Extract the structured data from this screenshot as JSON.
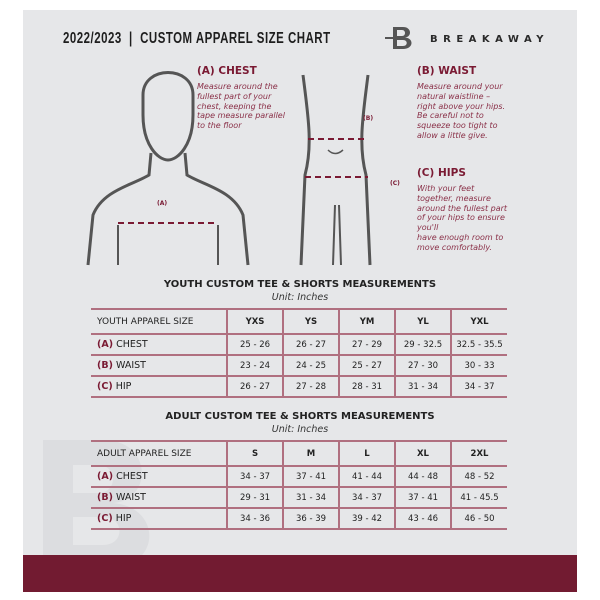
{
  "header": {
    "title": "2022/2023  |  CUSTOM APPAREL SIZE CHART",
    "brand": "BREAKAWAY",
    "logo_letter": "B"
  },
  "chest": {
    "heading": "(A) CHEST",
    "lines": [
      "Measure around the",
      "fullest part of your",
      "chest, keeping the",
      "tape measure parallel",
      "to the floor"
    ],
    "marker": "(A)"
  },
  "waist": {
    "heading": "(B) WAIST",
    "lines": [
      "Measure around your",
      "natural waistline –",
      "right above your hips.",
      "Be careful not to",
      "squeeze too tight to",
      "allow a little give."
    ],
    "marker": "(B)"
  },
  "hips": {
    "heading": "(C) HIPS",
    "lines": [
      "With your feet",
      "together, measure",
      "around the fullest part",
      "of your hips to ensure",
      "you'll",
      "have enough room to",
      "move comfortably."
    ],
    "marker": "(C)"
  },
  "youth": {
    "title": "YOUTH CUSTOM TEE & SHORTS MEASUREMENTS",
    "unit": "Unit: Inches",
    "header": [
      "YOUTH APPAREL SIZE",
      "YXS",
      "YS",
      "YM",
      "YL",
      "YXL"
    ],
    "rows": [
      {
        "letter": "(A)",
        "name": "CHEST",
        "values": [
          "25 - 26",
          "26 - 27",
          "27 - 29",
          "29 - 32.5",
          "32.5 - 35.5"
        ]
      },
      {
        "letter": "(B)",
        "name": "WAIST",
        "values": [
          "23 - 24",
          "24 - 25",
          "25 - 27",
          "27 - 30",
          "30 - 33"
        ]
      },
      {
        "letter": "(C)",
        "name": "HIP",
        "values": [
          "26 - 27",
          "27 - 28",
          "28 - 31",
          "31 - 34",
          "34 - 37"
        ]
      }
    ]
  },
  "adult": {
    "title": "ADULT CUSTOM TEE & SHORTS MEASUREMENTS",
    "unit": "Unit: Inches",
    "header": [
      "ADULT APPAREL SIZE",
      "S",
      "M",
      "L",
      "XL",
      "2XL"
    ],
    "rows": [
      {
        "letter": "(A)",
        "name": "CHEST",
        "values": [
          "34 - 37",
          "37 - 41",
          "41 - 44",
          "44 - 48",
          "48 - 52"
        ]
      },
      {
        "letter": "(B)",
        "name": "WAIST",
        "values": [
          "29 - 31",
          "31 - 34",
          "34 - 37",
          "37 - 41",
          "41 - 45.5"
        ]
      },
      {
        "letter": "(C)",
        "name": "HIP",
        "values": [
          "34 - 36",
          "36 - 39",
          "39 - 42",
          "43 - 46",
          "46 - 50"
        ]
      }
    ]
  },
  "colors": {
    "accent": "#721b31",
    "panel": "#e6e7e9"
  }
}
